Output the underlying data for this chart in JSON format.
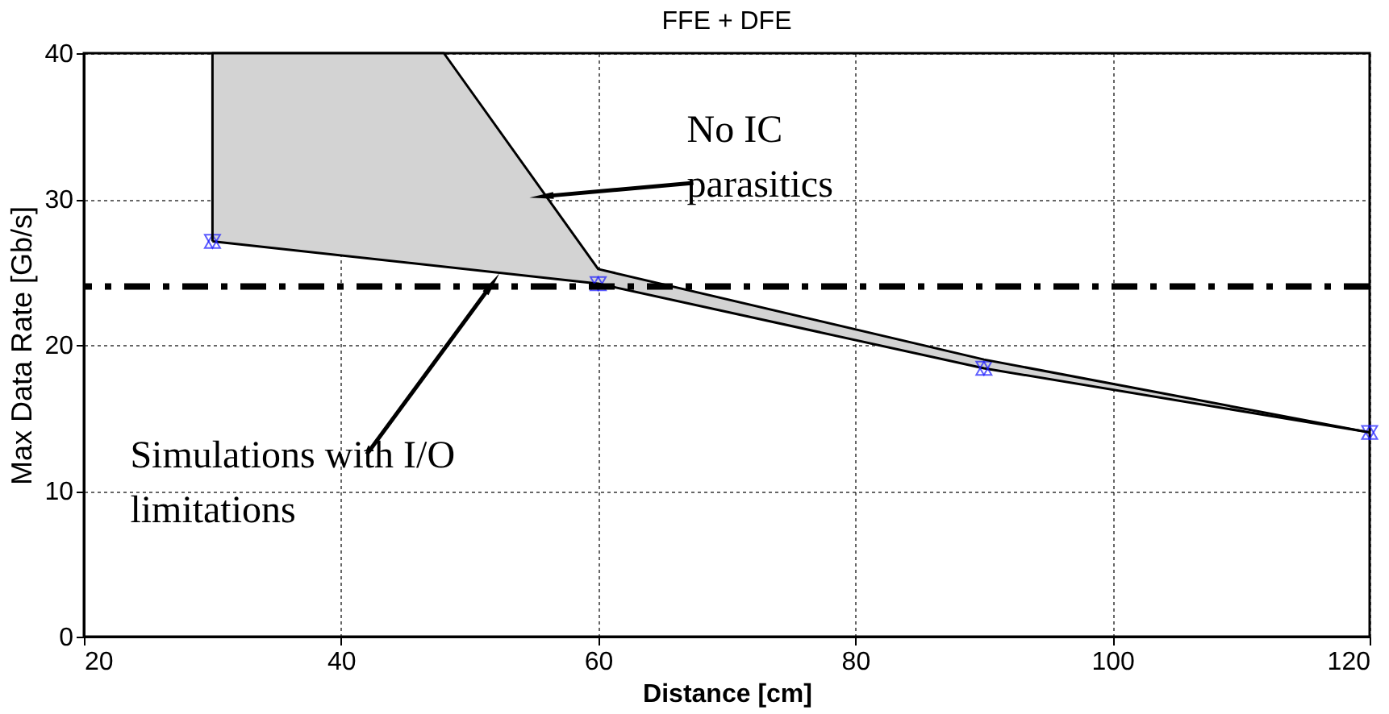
{
  "chart_data": {
    "type": "line",
    "title": "FFE + DFE",
    "xlabel": "Distance [cm]",
    "ylabel": "Max Data Rate [Gb/s]",
    "xlim": [
      20,
      120
    ],
    "xticks": [
      20,
      40,
      60,
      80,
      100,
      120
    ],
    "ylim": [
      0,
      40
    ],
    "yticks": [
      0,
      10,
      20,
      30,
      40
    ],
    "grid": true,
    "series": [
      {
        "color": "#000000",
        "marker": "triangle",
        "line_style": "solid",
        "x": [
          30,
          60,
          90,
          120
        ],
        "values": [
          27.1,
          24.2,
          18.4,
          14.0
        ]
      },
      {
        "color": "#000000",
        "marker": "none",
        "line_style": "solid",
        "x": [
          30,
          30,
          48,
          60,
          90,
          120
        ],
        "values": [
          27.1,
          40,
          40,
          25.2,
          19.0,
          14.0
        ]
      }
    ],
    "ref_lines": [
      {
        "axis": "y",
        "value": 24.0,
        "line_style": "dashdot",
        "color": "#000000"
      }
    ],
    "annotations": [
      {
        "text": "No IC parasitics",
        "x": 55.9,
        "y": 30.2
      },
      {
        "text": "Simulations with I/O limitations",
        "x": 51.6,
        "y": 24.0
      }
    ]
  }
}
